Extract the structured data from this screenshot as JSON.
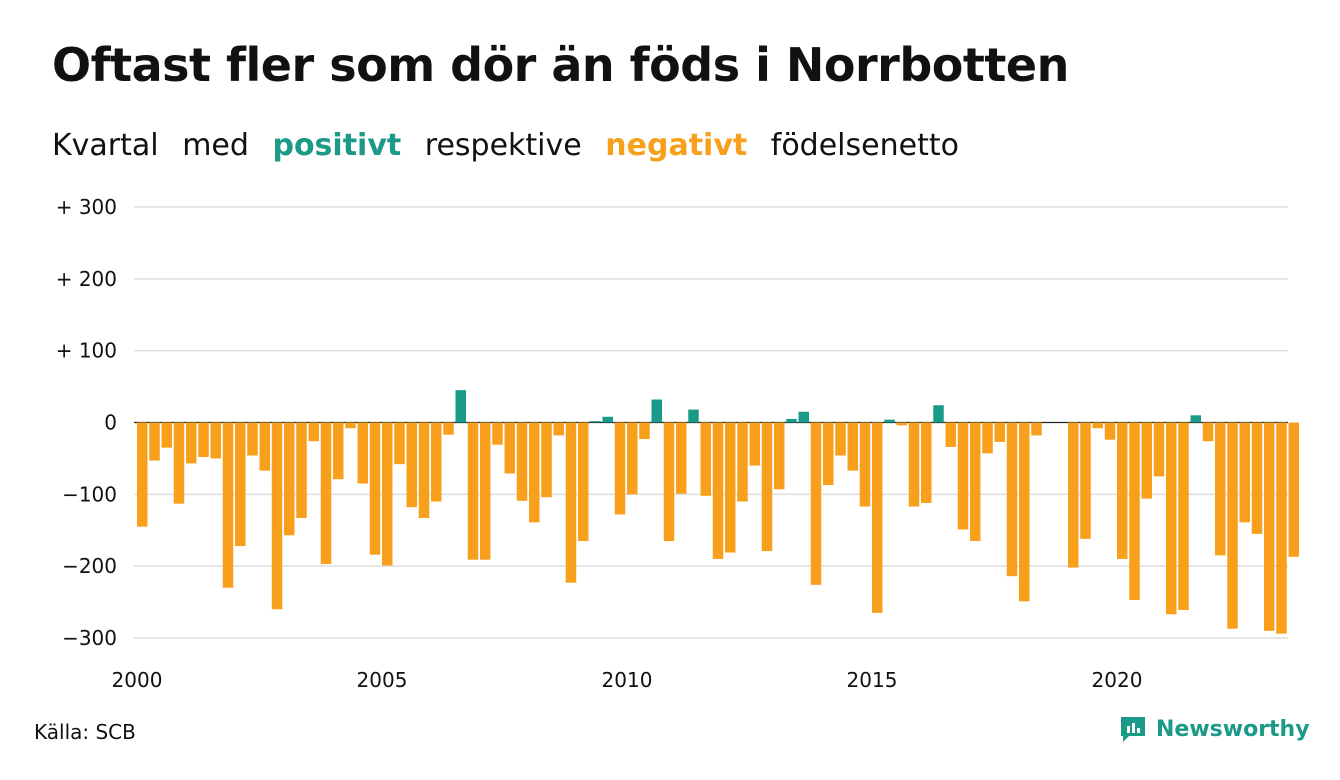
{
  "title": "Oftast fler som dör än föds i Norrbotten",
  "subtitle": {
    "part1": "Kvartal",
    "part2": "med",
    "positive": "positivt",
    "part3": "respektive",
    "negative": "negativt",
    "part4": "födelsenetto"
  },
  "source": "Källa: SCB",
  "brand": "Newsworthy",
  "colors": {
    "positive": "#1a9a87",
    "negative": "#f8a01b",
    "grid": "#dddddd",
    "text": "#111111"
  },
  "chart_data": {
    "type": "bar",
    "y_ticks": [
      {
        "value": 300,
        "label": "+ 300"
      },
      {
        "value": 200,
        "label": "+ 200"
      },
      {
        "value": 100,
        "label": "+ 100"
      },
      {
        "value": 0,
        "label": "0"
      },
      {
        "value": -100,
        "label": "−100"
      },
      {
        "value": -200,
        "label": "−200"
      },
      {
        "value": -300,
        "label": "−300"
      }
    ],
    "x_ticks": [
      "2000",
      "2005",
      "2010",
      "2015",
      "2020"
    ],
    "ylim": [
      -300,
      300
    ],
    "grid": true,
    "start_year": 2000,
    "categories": [
      "2000 Q1",
      "2000 Q2",
      "2000 Q3",
      "2000 Q4",
      "2001 Q1",
      "2001 Q2",
      "2001 Q3",
      "2001 Q4",
      "2002 Q1",
      "2002 Q2",
      "2002 Q3",
      "2002 Q4",
      "2003 Q1",
      "2003 Q2",
      "2003 Q3",
      "2003 Q4",
      "2004 Q1",
      "2004 Q2",
      "2004 Q3",
      "2004 Q4",
      "2005 Q1",
      "2005 Q2",
      "2005 Q3",
      "2005 Q4",
      "2006 Q1",
      "2006 Q2",
      "2006 Q3",
      "2006 Q4",
      "2007 Q1",
      "2007 Q2",
      "2007 Q3",
      "2007 Q4",
      "2008 Q1",
      "2008 Q2",
      "2008 Q3",
      "2008 Q4",
      "2009 Q1",
      "2009 Q2",
      "2009 Q3",
      "2009 Q4",
      "2010 Q1",
      "2010 Q2",
      "2010 Q3",
      "2010 Q4",
      "2011 Q1",
      "2011 Q2",
      "2011 Q3",
      "2011 Q4",
      "2012 Q1",
      "2012 Q2",
      "2012 Q3",
      "2012 Q4",
      "2013 Q1",
      "2013 Q2",
      "2013 Q3",
      "2013 Q4",
      "2014 Q1",
      "2014 Q2",
      "2014 Q3",
      "2014 Q4",
      "2015 Q1",
      "2015 Q2",
      "2015 Q3",
      "2015 Q4",
      "2016 Q1",
      "2016 Q2",
      "2016 Q3",
      "2016 Q4",
      "2017 Q1",
      "2017 Q2",
      "2017 Q3",
      "2017 Q4",
      "2018 Q1",
      "2018 Q2",
      "2018 Q3",
      "2018 Q4",
      "2019 Q1",
      "2019 Q2",
      "2019 Q3",
      "2019 Q4",
      "2020 Q1",
      "2020 Q2",
      "2020 Q3",
      "2020 Q4",
      "2021 Q1",
      "2021 Q2",
      "2021 Q3",
      "2021 Q4",
      "2022 Q1",
      "2022 Q2",
      "2022 Q3",
      "2022 Q4",
      "2023 Q1",
      "2023 Q2",
      "2023 Q3",
      "2023 Q4"
    ],
    "values": [
      -145,
      -53,
      -35,
      -113,
      -57,
      -48,
      -50,
      -230,
      -172,
      -46,
      -67,
      -260,
      -157,
      -133,
      -26,
      -197,
      -79,
      -8,
      -85,
      -184,
      -199,
      -58,
      -118,
      -133,
      -110,
      -17,
      45,
      -191,
      -191,
      -31,
      -71,
      -109,
      -139,
      -104,
      -18,
      -223,
      -165,
      2,
      8,
      -128,
      -100,
      -23,
      32,
      -165,
      -99,
      18,
      -102,
      -190,
      -181,
      -110,
      -60,
      -179,
      -93,
      5,
      15,
      -226,
      -87,
      -46,
      -67,
      -117,
      -265,
      4,
      -4,
      -117,
      -112,
      24,
      -34,
      -149,
      -165,
      -43,
      -27,
      -214,
      -249,
      -18,
      0,
      0,
      -202,
      -162,
      -8,
      -24,
      -190,
      -247,
      -106,
      -75,
      -267,
      -261,
      10,
      -26,
      -185,
      -287,
      -139,
      -155,
      -290,
      -294,
      -187,
      0
    ]
  }
}
